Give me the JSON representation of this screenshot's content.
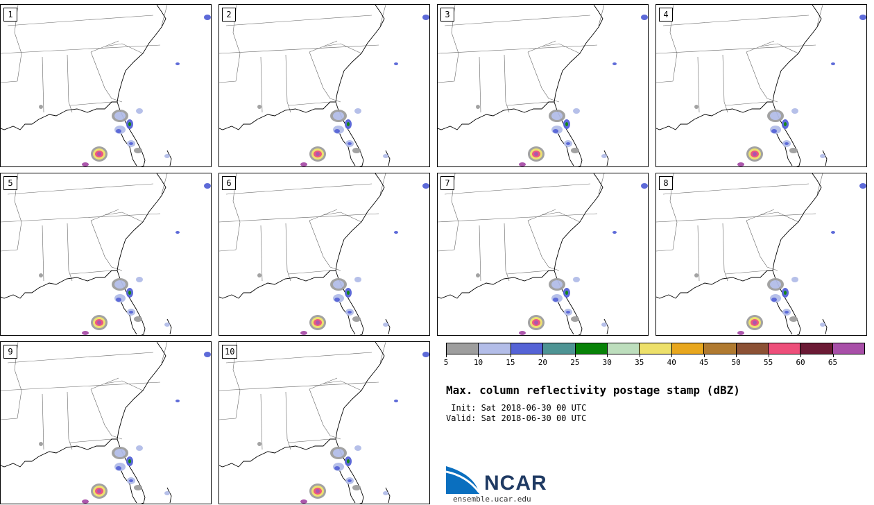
{
  "panels": [
    "1",
    "2",
    "3",
    "4",
    "5",
    "6",
    "7",
    "8",
    "9",
    "10"
  ],
  "colorbar": {
    "colors": [
      "#9e9e9e",
      "#b3bde8",
      "#5563d6",
      "#4e9494",
      "#078207",
      "#bddebd",
      "#ede06a",
      "#e8a71e",
      "#b07a30",
      "#8c5135",
      "#ed4f7a",
      "#6b1a35",
      "#a84fa8"
    ],
    "tick_labels": [
      "5",
      "10",
      "15",
      "20",
      "25",
      "30",
      "35",
      "40",
      "45",
      "50",
      "55",
      "60",
      "65"
    ]
  },
  "title": "Max. column reflectivity postage stamp (dBZ)",
  "init": " Init: Sat 2018-06-30 00 UTC",
  "valid": "Valid: Sat 2018-06-30 00 UTC",
  "logo": {
    "name": "NCAR",
    "url": "ensemble.ucar.edu"
  }
}
